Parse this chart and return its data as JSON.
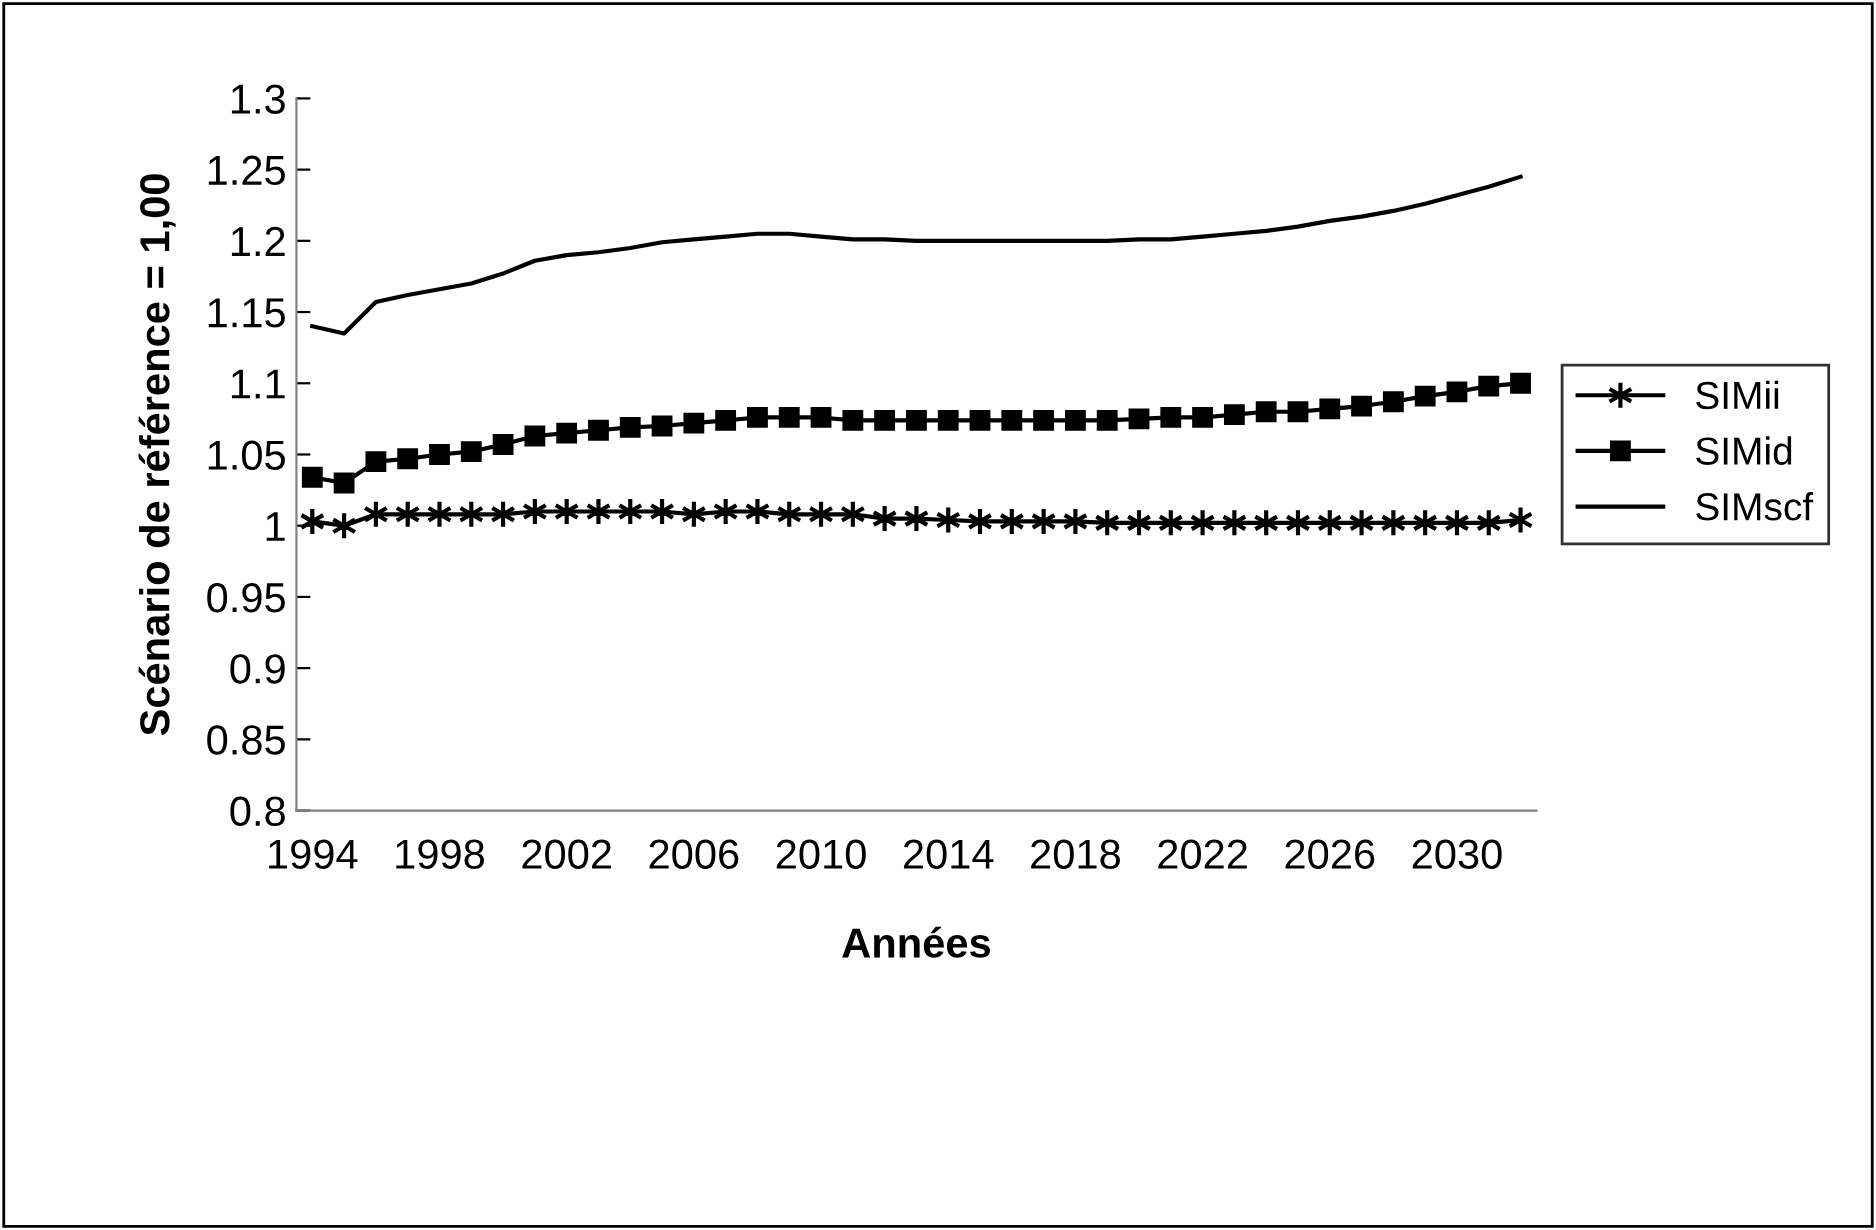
{
  "chart_data": {
    "type": "line",
    "xlabel": "Années",
    "ylabel": "Scénario de référence = 1,00",
    "categories": [
      "1994",
      null,
      null,
      null,
      "1998",
      null,
      null,
      null,
      "2002",
      null,
      null,
      null,
      "2006",
      null,
      null,
      null,
      "2010",
      null,
      null,
      null,
      "2014",
      null,
      null,
      null,
      "2018",
      null,
      null,
      null,
      "2022",
      null,
      null,
      null,
      "2026",
      null,
      null,
      null,
      "2030",
      null,
      null
    ],
    "series": [
      {
        "name": "SIMii",
        "color": "#000000",
        "marker": "cross",
        "values": [
          1.003,
          1.0,
          1.008,
          1.008,
          1.008,
          1.008,
          1.008,
          1.01,
          1.01,
          1.01,
          1.01,
          1.01,
          1.008,
          1.01,
          1.01,
          1.008,
          1.008,
          1.008,
          1.005,
          1.005,
          1.004,
          1.003,
          1.003,
          1.003,
          1.003,
          1.002,
          1.002,
          1.002,
          1.002,
          1.002,
          1.002,
          1.002,
          1.002,
          1.002,
          1.002,
          1.002,
          1.002,
          1.002,
          1.004
        ]
      },
      {
        "name": "SIMid",
        "color": "#000000",
        "marker": "square",
        "values": [
          1.034,
          1.03,
          1.045,
          1.047,
          1.05,
          1.052,
          1.057,
          1.063,
          1.065,
          1.067,
          1.069,
          1.07,
          1.072,
          1.074,
          1.076,
          1.076,
          1.076,
          1.074,
          1.074,
          1.074,
          1.074,
          1.074,
          1.074,
          1.074,
          1.074,
          1.074,
          1.075,
          1.076,
          1.076,
          1.078,
          1.08,
          1.08,
          1.082,
          1.084,
          1.087,
          1.091,
          1.094,
          1.098,
          1.1
        ]
      },
      {
        "name": "SIMscf",
        "color": "#000000",
        "marker": "none",
        "values": [
          1.14,
          1.135,
          1.157,
          1.162,
          1.166,
          1.17,
          1.177,
          1.186,
          1.19,
          1.192,
          1.195,
          1.199,
          1.201,
          1.203,
          1.205,
          1.205,
          1.203,
          1.201,
          1.201,
          1.2,
          1.2,
          1.2,
          1.2,
          1.2,
          1.2,
          1.2,
          1.201,
          1.201,
          1.203,
          1.205,
          1.207,
          1.21,
          1.214,
          1.217,
          1.221,
          1.226,
          1.232,
          1.238,
          1.245
        ]
      }
    ],
    "ylim": [
      0.8,
      1.3
    ],
    "yticks": [
      0.8,
      0.85,
      0.9,
      0.95,
      1,
      1.05,
      1.1,
      1.15,
      1.2,
      1.25,
      1.3
    ],
    "grid": false,
    "legend": "right"
  }
}
